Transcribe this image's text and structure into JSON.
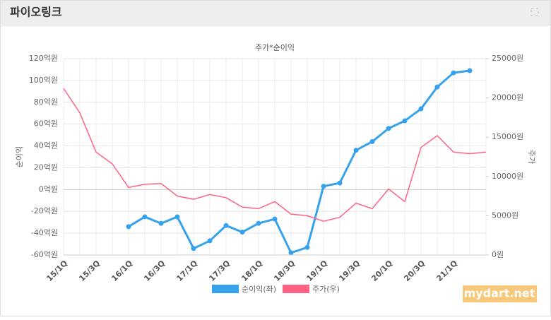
{
  "panel_title": "파이오링크",
  "watermark": "mydart.net",
  "chart_data": {
    "type": "line",
    "title": "주가*순이익",
    "y_label": "순이익",
    "y2_label": "주가",
    "categories": [
      "15/1Q",
      null,
      "15/3Q",
      null,
      "16/1Q",
      null,
      "16/3Q",
      null,
      "17/1Q",
      null,
      "17/3Q",
      null,
      "18/1Q",
      null,
      "18/3Q",
      null,
      "19/1Q",
      null,
      "19/3Q",
      null,
      "20/1Q",
      null,
      "20/3Q",
      null,
      "21/1Q",
      null,
      null
    ],
    "series": [
      {
        "name": "순이익(좌)",
        "color": "#36a2eb",
        "values": [
          null,
          null,
          null,
          null,
          -34,
          -25,
          -31,
          -25,
          -54,
          -47,
          -33,
          -39,
          -31,
          -27,
          -58,
          -53,
          3,
          6,
          36,
          44,
          56,
          63,
          74,
          94,
          107,
          109,
          null
        ]
      },
      {
        "name": "주가(우)",
        "color": "#ff6384",
        "axis": "y2",
        "values": [
          21200,
          18100,
          13100,
          11600,
          8600,
          9000,
          9100,
          7500,
          7100,
          7700,
          7300,
          6100,
          5900,
          6800,
          5200,
          5000,
          4300,
          4800,
          6600,
          5900,
          8400,
          6800,
          13700,
          15200,
          13100,
          12900,
          13100
        ]
      }
    ],
    "ylim": [
      -60,
      120
    ],
    "yticks": [
      {
        "value": -60,
        "label": "-60억원"
      },
      {
        "value": -40,
        "label": "-40억원"
      },
      {
        "value": -20,
        "label": "-20억원"
      },
      {
        "value": 0,
        "label": "0억원"
      },
      {
        "value": 20,
        "label": "20억원"
      },
      {
        "value": 40,
        "label": "40억원"
      },
      {
        "value": 60,
        "label": "60억원"
      },
      {
        "value": 80,
        "label": "80억원"
      },
      {
        "value": 100,
        "label": "100억원"
      },
      {
        "value": 120,
        "label": "120억원"
      }
    ],
    "y2lim": [
      0,
      25000
    ],
    "y2ticks": [
      {
        "value": 0,
        "label": "0원"
      },
      {
        "value": 5000,
        "label": "5000원"
      },
      {
        "value": 10000,
        "label": "10000원"
      },
      {
        "value": 15000,
        "label": "15000원"
      },
      {
        "value": 20000,
        "label": "20000원"
      },
      {
        "value": 25000,
        "label": "25000원"
      }
    ],
    "grid": true,
    "legend": "bottom"
  }
}
